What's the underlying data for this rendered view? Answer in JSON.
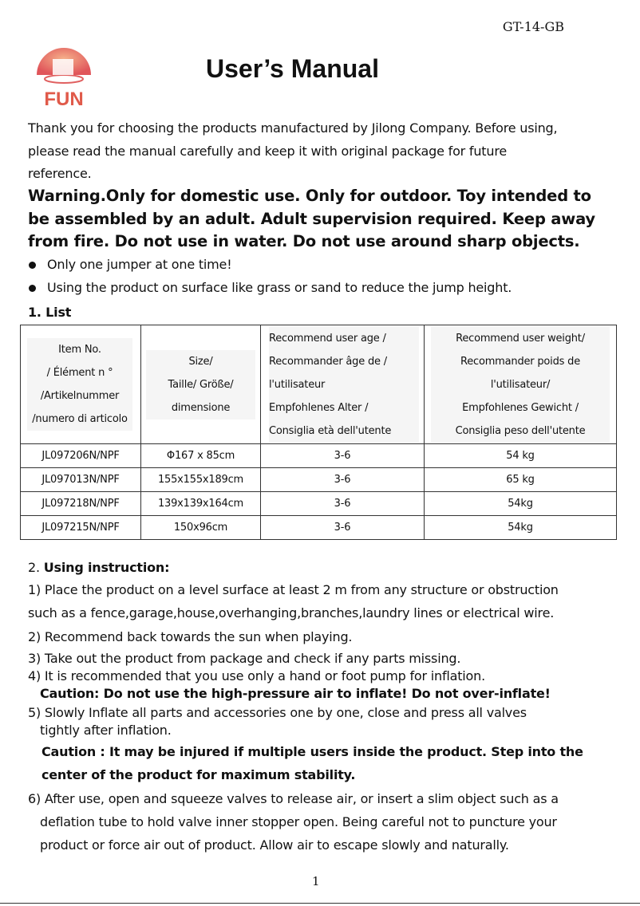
{
  "header": {
    "code": "GT-14-GB",
    "title": "User’s Manual",
    "logo_text": "FUN"
  },
  "intro": [
    "Thank you for choosing the products manufactured by Jilong Company. Before using,",
    "please read the manual carefully and keep it with original package for future",
    "reference."
  ],
  "warning": [
    "Warning.Only for domestic use. Only for outdoor. Toy intended to",
    "be assembled by an adult. Adult supervision required. Keep away",
    "from fire. Do not use in water. Do not use around sharp objects."
  ],
  "bullets": [
    "Only one jumper at one time!",
    "Using the product on surface like grass or sand to reduce the jump height."
  ],
  "list_heading": "1. List",
  "table": {
    "headers": [
      [
        "Item No.",
        "/ Élément n °",
        "/Artikelnummer",
        "/numero di articolo"
      ],
      [
        "Size/",
        "Taille/ Größe/",
        "dimensione"
      ],
      [
        "Recommend user age /",
        "Recommander âge de   /",
        "l'utilisateur",
        "Empfohlenes Alter /",
        "Consiglia età dell'utente"
      ],
      [
        "Recommend user weight/",
        "Recommander poids de",
        "l'utilisateur/",
        "Empfohlenes Gewicht /",
        "Consiglia peso dell'utente"
      ]
    ],
    "rows": [
      [
        "JL097206N/NPF",
        "Φ167 x 85cm",
        "3-6",
        "54 kg"
      ],
      [
        "JL097013N/NPF",
        "155x155x189cm",
        "3-6",
        "65 kg"
      ],
      [
        "JL097218N/NPF",
        "139x139x164cm",
        "3-6",
        "54kg"
      ],
      [
        "JL097215N/NPF",
        "150x96cm",
        "3-6",
        "54kg"
      ]
    ]
  },
  "instructions": {
    "heading_num": "2. ",
    "heading": "Using instruction:",
    "lines": [
      "1) Place the product on a level surface at least 2 m from any structure or obstruction",
      "such as a fence,garage,house,overhanging,branches,laundry lines or electrical wire.",
      "2) Recommend back towards the sun when playing.",
      "3) Take out the product from package and check if any parts missing.",
      "4) It is recommended that you use only a hand or foot pump for inflation.",
      "Caution: Do not use the high-pressure air to inflate! Do not over-inflate!",
      "5) Slowly Inflate all parts and accessories one by one, close and press all valves",
      "tightly after inflation.",
      "Caution : It may be injured if multiple users inside the product. Step into the",
      "center of the product for maximum stability.",
      "6) After use, open and squeeze valves to release air, or insert a slim object such as a",
      "deflation tube to hold valve inner stopper open. Being careful not to puncture your",
      "product or force air out of product. Allow air to escape slowly and naturally."
    ]
  },
  "page_number": "1"
}
